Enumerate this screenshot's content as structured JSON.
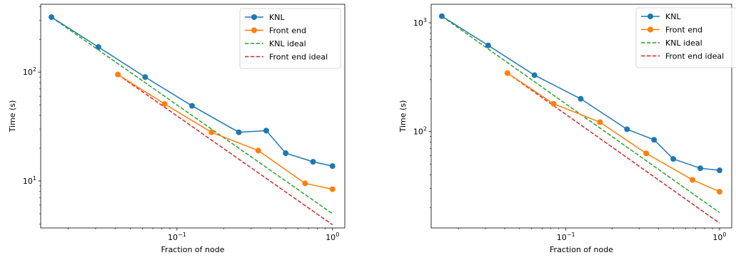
{
  "chart_data": [
    {
      "type": "line",
      "xlabel": "Fraction of node",
      "ylabel": "Time (s)",
      "xscale": "log",
      "yscale": "log",
      "xlim": [
        0.0133,
        1.2
      ],
      "ylim": [
        3.7,
        420
      ],
      "grid": false,
      "legend_position": "top-right",
      "x_ticks": [
        {
          "value": 0.1,
          "base": "10",
          "exp": "−1"
        },
        {
          "value": 1,
          "base": "10",
          "exp": "0"
        }
      ],
      "y_ticks": [
        {
          "value": 10,
          "base": "10",
          "exp": "1"
        },
        {
          "value": 100,
          "base": "10",
          "exp": "2"
        }
      ],
      "series": [
        {
          "name": "KNL",
          "style": "solid-marker",
          "color": "#1f77b4",
          "x": [
            0.0156,
            0.03125,
            0.0625,
            0.125,
            0.25,
            0.375,
            0.5,
            0.75,
            1.0
          ],
          "y": [
            320,
            170,
            90,
            49,
            28,
            29,
            18,
            15,
            13.7
          ]
        },
        {
          "name": "Front end",
          "style": "solid-marker",
          "color": "#ff7f0e",
          "x": [
            0.0417,
            0.0833,
            0.1667,
            0.3333,
            0.6667,
            1.0
          ],
          "y": [
            95,
            51,
            28,
            19,
            9.5,
            8.4
          ]
        },
        {
          "name": "KNL ideal",
          "style": "dashed",
          "color": "#2ca02c",
          "x": [
            0.0156,
            1.0
          ],
          "y": [
            320,
            5.0
          ]
        },
        {
          "name": "Front end ideal",
          "style": "dashed",
          "color": "#d62728",
          "x": [
            0.0417,
            1.0
          ],
          "y": [
            95,
            3.96
          ]
        }
      ]
    },
    {
      "type": "line",
      "xlabel": "Fraction of node",
      "ylabel": "Time (s)",
      "xscale": "log",
      "yscale": "log",
      "xlim": [
        0.0133,
        1.2
      ],
      "ylim": [
        13,
        1480
      ],
      "grid": false,
      "legend_position": "top-right",
      "x_ticks": [
        {
          "value": 0.1,
          "base": "10",
          "exp": "−1"
        },
        {
          "value": 1,
          "base": "10",
          "exp": "0"
        }
      ],
      "y_ticks": [
        {
          "value": 100,
          "base": "10",
          "exp": "2"
        },
        {
          "value": 1000,
          "base": "10",
          "exp": "3"
        }
      ],
      "series": [
        {
          "name": "KNL",
          "style": "solid-marker",
          "color": "#1f77b4",
          "x": [
            0.0156,
            0.03125,
            0.0625,
            0.125,
            0.25,
            0.375,
            0.5,
            0.75,
            1.0
          ],
          "y": [
            1150,
            620,
            330,
            200,
            105,
            84,
            56,
            46,
            44
          ]
        },
        {
          "name": "Front end",
          "style": "solid-marker",
          "color": "#ff7f0e",
          "x": [
            0.0417,
            0.0833,
            0.1667,
            0.3333,
            0.6667,
            1.0
          ],
          "y": [
            345,
            180,
            122,
            63,
            36,
            28
          ]
        },
        {
          "name": "KNL ideal",
          "style": "dashed",
          "color": "#2ca02c",
          "x": [
            0.0156,
            1.0
          ],
          "y": [
            1150,
            18
          ]
        },
        {
          "name": "Front end ideal",
          "style": "dashed",
          "color": "#d62728",
          "x": [
            0.0417,
            1.0
          ],
          "y": [
            345,
            14.4
          ]
        }
      ]
    }
  ]
}
